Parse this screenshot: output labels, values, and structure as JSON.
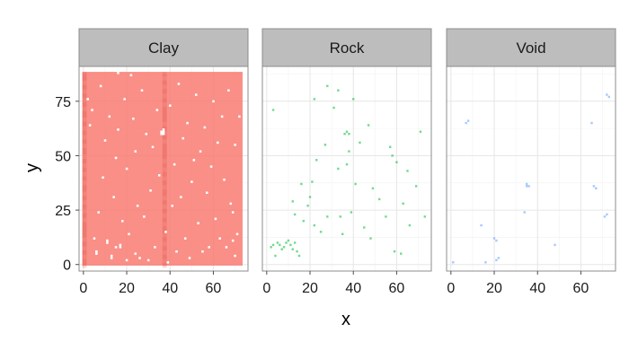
{
  "chart_data": {
    "type": "heatmap",
    "title": "",
    "xlabel": "x",
    "ylabel": "y",
    "xlim": [
      -2,
      76
    ],
    "ylim": [
      -3,
      91
    ],
    "x_ticks": [
      "0",
      "20",
      "40",
      "60"
    ],
    "y_ticks": [
      "0",
      "25",
      "50",
      "75"
    ],
    "grid": true,
    "legend": "none",
    "grid_extent": {
      "x": [
        0,
        73
      ],
      "y": [
        0,
        88
      ]
    },
    "panels": [
      {
        "name": "Clay",
        "color": "#F8766D",
        "fill": "dominant",
        "gaps": [
          [
            2,
            76
          ],
          [
            3,
            64
          ],
          [
            4,
            71
          ],
          [
            5,
            12
          ],
          [
            6,
            5
          ],
          [
            6,
            6
          ],
          [
            7,
            24
          ],
          [
            8,
            82
          ],
          [
            9,
            40
          ],
          [
            10,
            57
          ],
          [
            11,
            10
          ],
          [
            11,
            11
          ],
          [
            12,
            68
          ],
          [
            13,
            3
          ],
          [
            13,
            4
          ],
          [
            14,
            31
          ],
          [
            15,
            8
          ],
          [
            15,
            49
          ],
          [
            16,
            88
          ],
          [
            16,
            62
          ],
          [
            17,
            8
          ],
          [
            17,
            9
          ],
          [
            18,
            20
          ],
          [
            19,
            76
          ],
          [
            20,
            2
          ],
          [
            20,
            44
          ],
          [
            21,
            14
          ],
          [
            22,
            87
          ],
          [
            23,
            67
          ],
          [
            24,
            5
          ],
          [
            24,
            52
          ],
          [
            25,
            27
          ],
          [
            26,
            3
          ],
          [
            27,
            80
          ],
          [
            28,
            22
          ],
          [
            29,
            60
          ],
          [
            30,
            2
          ],
          [
            31,
            34
          ],
          [
            32,
            54
          ],
          [
            33,
            8
          ],
          [
            34,
            71
          ],
          [
            35,
            41
          ],
          [
            36,
            60
          ],
          [
            36,
            61
          ],
          [
            37,
            60
          ],
          [
            37,
            61
          ],
          [
            37,
            62
          ],
          [
            38,
            15
          ],
          [
            39,
            1
          ],
          [
            40,
            73
          ],
          [
            41,
            27
          ],
          [
            42,
            46
          ],
          [
            43,
            6
          ],
          [
            44,
            83
          ],
          [
            45,
            31
          ],
          [
            46,
            58
          ],
          [
            47,
            12
          ],
          [
            48,
            65
          ],
          [
            49,
            3
          ],
          [
            50,
            38
          ],
          [
            51,
            48
          ],
          [
            52,
            78
          ],
          [
            53,
            19
          ],
          [
            54,
            52
          ],
          [
            55,
            6
          ],
          [
            56,
            63
          ],
          [
            57,
            33
          ],
          [
            58,
            8
          ],
          [
            59,
            45
          ],
          [
            60,
            75
          ],
          [
            61,
            21
          ],
          [
            62,
            56
          ],
          [
            63,
            12
          ],
          [
            64,
            68
          ],
          [
            65,
            39
          ],
          [
            66,
            8
          ],
          [
            67,
            80
          ],
          [
            68,
            28
          ],
          [
            69,
            11
          ],
          [
            69,
            24
          ],
          [
            70,
            55
          ],
          [
            71,
            14
          ],
          [
            72,
            68
          ],
          [
            70,
            4
          ]
        ]
      },
      {
        "name": "Rock",
        "color": "#00BA38",
        "fill": "sparse",
        "cells": [
          [
            2,
            8
          ],
          [
            3,
            9
          ],
          [
            4,
            4
          ],
          [
            5,
            10
          ],
          [
            6,
            9
          ],
          [
            7,
            7
          ],
          [
            8,
            8
          ],
          [
            9,
            10
          ],
          [
            10,
            11
          ],
          [
            11,
            9
          ],
          [
            12,
            7
          ],
          [
            13,
            10
          ],
          [
            12,
            29
          ],
          [
            13,
            23
          ],
          [
            14,
            6
          ],
          [
            16,
            37
          ],
          [
            17,
            20
          ],
          [
            19,
            27
          ],
          [
            20,
            31
          ],
          [
            21,
            38
          ],
          [
            22,
            76
          ],
          [
            22,
            18
          ],
          [
            23,
            48
          ],
          [
            25,
            15
          ],
          [
            27,
            55
          ],
          [
            28,
            22
          ],
          [
            31,
            72
          ],
          [
            33,
            44
          ],
          [
            34,
            22
          ],
          [
            35,
            14
          ],
          [
            36,
            60
          ],
          [
            37,
            61
          ],
          [
            38,
            60
          ],
          [
            37,
            46
          ],
          [
            38,
            52
          ],
          [
            39,
            24
          ],
          [
            41,
            37
          ],
          [
            43,
            56
          ],
          [
            45,
            17
          ],
          [
            47,
            64
          ],
          [
            48,
            12
          ],
          [
            49,
            35
          ],
          [
            52,
            30
          ],
          [
            55,
            22
          ],
          [
            57,
            54
          ],
          [
            58,
            50
          ],
          [
            59,
            6
          ],
          [
            60,
            47
          ],
          [
            62,
            5
          ],
          [
            63,
            28
          ],
          [
            65,
            43
          ],
          [
            66,
            18
          ],
          [
            69,
            36
          ],
          [
            71,
            61
          ],
          [
            73,
            22
          ],
          [
            15,
            4
          ],
          [
            33,
            80
          ],
          [
            40,
            76
          ],
          [
            3,
            71
          ],
          [
            28,
            82
          ]
        ]
      },
      {
        "name": "Void",
        "color": "#619CFF",
        "fill": "sparse",
        "cells": [
          [
            1,
            1
          ],
          [
            7,
            65
          ],
          [
            8,
            66
          ],
          [
            14,
            18
          ],
          [
            16,
            1
          ],
          [
            20,
            12
          ],
          [
            21,
            2
          ],
          [
            21,
            11
          ],
          [
            22,
            3
          ],
          [
            34,
            24
          ],
          [
            35,
            36
          ],
          [
            36,
            36
          ],
          [
            35,
            37
          ],
          [
            48,
            9
          ],
          [
            65,
            65
          ],
          [
            66,
            36
          ],
          [
            67,
            35
          ],
          [
            71,
            22
          ],
          [
            72,
            23
          ],
          [
            73,
            77
          ],
          [
            72,
            78
          ]
        ]
      }
    ]
  }
}
